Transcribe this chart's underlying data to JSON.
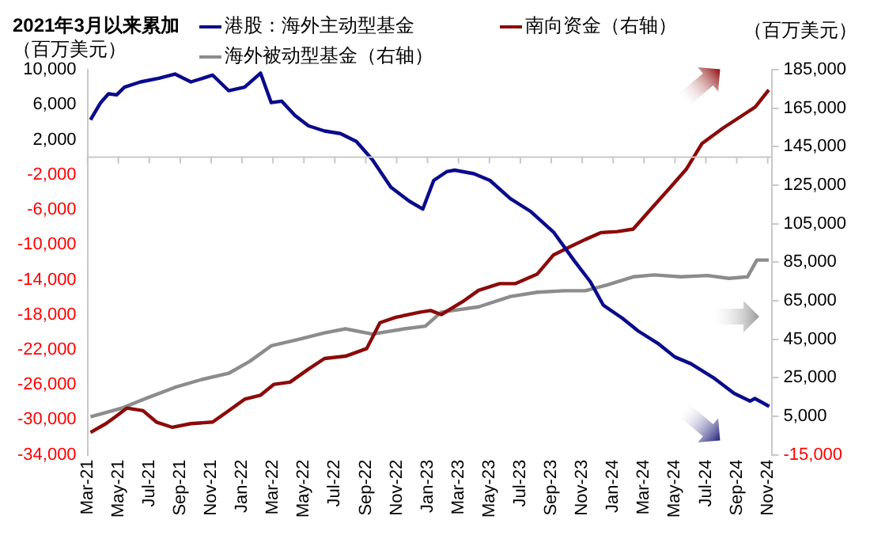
{
  "chart_data": {
    "type": "line",
    "title": "2021年3月以来累加",
    "ylabel": "（百万美元）",
    "y2label": "（百万美元）",
    "legend": "top",
    "grid": false,
    "xlim": [
      "2021-03-01",
      "2024-11-10"
    ],
    "xticks": [
      {
        "value": "2021-03",
        "label": "Mar-21"
      },
      {
        "value": "2021-05",
        "label": "May-21"
      },
      {
        "value": "2021-07",
        "label": "Jul-21"
      },
      {
        "value": "2021-09",
        "label": "Sep-21"
      },
      {
        "value": "2021-11",
        "label": "Nov-21"
      },
      {
        "value": "2022-01",
        "label": "Jan-22"
      },
      {
        "value": "2022-03",
        "label": "Mar-22"
      },
      {
        "value": "2022-05",
        "label": "May-22"
      },
      {
        "value": "2022-07",
        "label": "Jul-22"
      },
      {
        "value": "2022-09",
        "label": "Sep-22"
      },
      {
        "value": "2022-11",
        "label": "Nov-22"
      },
      {
        "value": "2023-01",
        "label": "Jan-23"
      },
      {
        "value": "2023-03",
        "label": "Mar-23"
      },
      {
        "value": "2023-05",
        "label": "May-23"
      },
      {
        "value": "2023-07",
        "label": "Jul-23"
      },
      {
        "value": "2023-09",
        "label": "Sep-23"
      },
      {
        "value": "2023-11",
        "label": "Nov-23"
      },
      {
        "value": "2024-01",
        "label": "Jan-24"
      },
      {
        "value": "2024-03",
        "label": "Mar-24"
      },
      {
        "value": "2024-05",
        "label": "May-24"
      },
      {
        "value": "2024-07",
        "label": "Jul-24"
      },
      {
        "value": "2024-09",
        "label": "Sep-24"
      },
      {
        "value": "2024-11",
        "label": "Nov-24"
      }
    ],
    "ylim": [
      -34000,
      10000
    ],
    "yticks": [
      {
        "value": -34000,
        "label": "-34,000"
      },
      {
        "value": -30000,
        "label": "-30,000"
      },
      {
        "value": -26000,
        "label": "-26,000"
      },
      {
        "value": -22000,
        "label": "-22,000"
      },
      {
        "value": -18000,
        "label": "-18,000"
      },
      {
        "value": -14000,
        "label": "-14,000"
      },
      {
        "value": -10000,
        "label": "-10,000"
      },
      {
        "value": -6000,
        "label": "-6,000"
      },
      {
        "value": -2000,
        "label": "-2,000"
      },
      {
        "value": 2000,
        "label": "2,000"
      },
      {
        "value": 6000,
        "label": "6,000"
      },
      {
        "value": 10000,
        "label": "10,000"
      }
    ],
    "y2lim": [
      -15000,
      185000
    ],
    "y2ticks": [
      {
        "value": -15000,
        "label": "-15,000"
      },
      {
        "value": 5000,
        "label": "5,000"
      },
      {
        "value": 25000,
        "label": "25,000"
      },
      {
        "value": 45000,
        "label": "45,000"
      },
      {
        "value": 65000,
        "label": "65,000"
      },
      {
        "value": 85000,
        "label": "85,000"
      },
      {
        "value": 105000,
        "label": "105,000"
      },
      {
        "value": 125000,
        "label": "125,000"
      },
      {
        "value": 145000,
        "label": "145,000"
      },
      {
        "value": 165000,
        "label": "165,000"
      },
      {
        "value": 185000,
        "label": "185,000"
      }
    ],
    "series": [
      {
        "name": "港股：海外主动型基金",
        "color": "#0a0a8c",
        "x": [
          "2021-03-07",
          "2021-03-27",
          "2021-04-12",
          "2021-04-28",
          "2021-05-13",
          "2021-06-14",
          "2021-07-20",
          "2021-08-21",
          "2021-09-22",
          "2021-11-04",
          "2021-12-05",
          "2022-01-06",
          "2022-02-07",
          "2022-02-28",
          "2022-03-18",
          "2022-04-14",
          "2022-05-10",
          "2022-06-11",
          "2022-07-12",
          "2022-08-13",
          "2022-09-14",
          "2022-10-20",
          "2022-11-26",
          "2022-12-22",
          "2023-01-13",
          "2023-02-08",
          "2023-02-24",
          "2023-04-01",
          "2023-05-02",
          "2023-06-12",
          "2023-07-22",
          "2023-09-06",
          "2023-10-16",
          "2023-11-17",
          "2023-12-12",
          "2024-01-19",
          "2024-02-20",
          "2024-03-30",
          "2024-05-01",
          "2024-06-02",
          "2024-07-16",
          "2024-08-26",
          "2024-09-27",
          "2024-10-06",
          "2024-11-04"
        ],
        "values": [
          4270,
          6230,
          7240,
          7120,
          8000,
          8600,
          9020,
          9500,
          8600,
          9370,
          7600,
          8000,
          9600,
          6230,
          6400,
          4760,
          3580,
          2990,
          2700,
          1800,
          -290,
          -3430,
          -5030,
          -5930,
          -2660,
          -1660,
          -1480,
          -1890,
          -2660,
          -4740,
          -6230,
          -8600,
          -11850,
          -14230,
          -16900,
          -18390,
          -19860,
          -21350,
          -22830,
          -23600,
          -25200,
          -26980,
          -27870,
          -27570,
          -28470
        ]
      },
      {
        "name": "南向资金（右轴）",
        "color": "#8b0a0a",
        "axis": "y2",
        "x": [
          "2021-03-07",
          "2021-04-07",
          "2021-04-28",
          "2021-05-18",
          "2021-06-19",
          "2021-07-15",
          "2021-08-16",
          "2021-09-22",
          "2021-11-04",
          "2021-12-05",
          "2022-01-06",
          "2022-02-07",
          "2022-03-03",
          "2022-04-04",
          "2022-05-10",
          "2022-06-11",
          "2022-07-22",
          "2022-09-03",
          "2022-09-29",
          "2022-10-30",
          "2022-12-17",
          "2023-01-07",
          "2023-01-28",
          "2023-03-09",
          "2023-04-10",
          "2023-05-21",
          "2023-06-22",
          "2023-08-04",
          "2023-09-05",
          "2023-10-06",
          "2023-11-07",
          "2023-12-08",
          "2024-01-09",
          "2024-02-10",
          "2024-03-21",
          "2024-04-22",
          "2024-05-23",
          "2024-06-24",
          "2024-08-05",
          "2024-09-17",
          "2024-10-07",
          "2024-11-03"
        ],
        "values": [
          -3400,
          1200,
          5200,
          9270,
          7900,
          1990,
          -750,
          1200,
          1990,
          7900,
          13830,
          15980,
          21600,
          22700,
          29500,
          34980,
          36200,
          40200,
          53600,
          56400,
          59100,
          59900,
          57800,
          64500,
          70400,
          73900,
          73900,
          78900,
          88700,
          92800,
          96800,
          100400,
          100900,
          102200,
          114500,
          123800,
          133200,
          146700,
          154800,
          162100,
          165600,
          174500
        ]
      },
      {
        "name": "海外被动型基金（右轴）",
        "color": "#8c8c8c",
        "axis": "y2",
        "x": [
          "2021-03-07",
          "2021-05-08",
          "2021-06-29",
          "2021-08-21",
          "2021-10-13",
          "2021-12-05",
          "2022-01-16",
          "2022-02-28",
          "2022-04-19",
          "2022-06-11",
          "2022-07-22",
          "2022-09-14",
          "2022-11-16",
          "2022-12-27",
          "2023-01-28",
          "2023-04-10",
          "2023-06-12",
          "2023-08-04",
          "2023-09-26",
          "2023-11-07",
          "2023-12-18",
          "2024-02-10",
          "2024-03-21",
          "2024-05-13",
          "2024-07-04",
          "2024-08-16",
          "2024-09-22",
          "2024-10-10",
          "2024-11-03"
        ],
        "values": [
          4700,
          9270,
          14700,
          20000,
          24100,
          27300,
          33500,
          41600,
          44800,
          48300,
          50400,
          47700,
          50400,
          51800,
          59100,
          61800,
          67200,
          69400,
          70200,
          70200,
          73100,
          77400,
          78400,
          77400,
          78100,
          76600,
          77400,
          86100,
          86100
        ]
      }
    ]
  }
}
